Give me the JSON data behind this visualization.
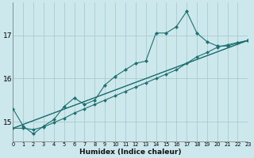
{
  "xlabel": "Humidex (Indice chaleur)",
  "background_color": "#cce8ec",
  "grid_color": "#aacccc",
  "line_color": "#1e7070",
  "xmin": 0,
  "xmax": 23,
  "ymin": 14.55,
  "ymax": 17.75,
  "yticks": [
    15,
    16,
    17
  ],
  "xticks": [
    0,
    1,
    2,
    3,
    4,
    5,
    6,
    7,
    8,
    9,
    10,
    11,
    12,
    13,
    14,
    15,
    16,
    17,
    18,
    19,
    20,
    21,
    22,
    23
  ],
  "line1_x": [
    0,
    1,
    2,
    3,
    4,
    5,
    6,
    7,
    8,
    9,
    10,
    11,
    12,
    13,
    14,
    15,
    16,
    17,
    18,
    19,
    20,
    21,
    22,
    23
  ],
  "line1_y": [
    15.3,
    14.9,
    14.72,
    14.9,
    15.05,
    15.35,
    15.55,
    15.4,
    15.5,
    15.85,
    16.05,
    16.2,
    16.35,
    16.4,
    17.05,
    17.05,
    17.2,
    17.55,
    17.05,
    16.85,
    16.75,
    16.75,
    16.82,
    16.88
  ],
  "line2_x": [
    0,
    1,
    2,
    3,
    4,
    5,
    6,
    7,
    8,
    9,
    10,
    11,
    12,
    13,
    14,
    15,
    16,
    17,
    18,
    19,
    20,
    21,
    22,
    23
  ],
  "line2_y": [
    14.85,
    14.85,
    14.82,
    14.88,
    14.98,
    15.08,
    15.2,
    15.3,
    15.4,
    15.5,
    15.6,
    15.7,
    15.8,
    15.9,
    16.0,
    16.1,
    16.2,
    16.35,
    16.5,
    16.6,
    16.72,
    16.78,
    16.83,
    16.88
  ],
  "line3_x": [
    0,
    23
  ],
  "line3_y": [
    14.85,
    16.88
  ],
  "line4_x": [
    0,
    23
  ],
  "line4_y": [
    14.85,
    16.88
  ]
}
